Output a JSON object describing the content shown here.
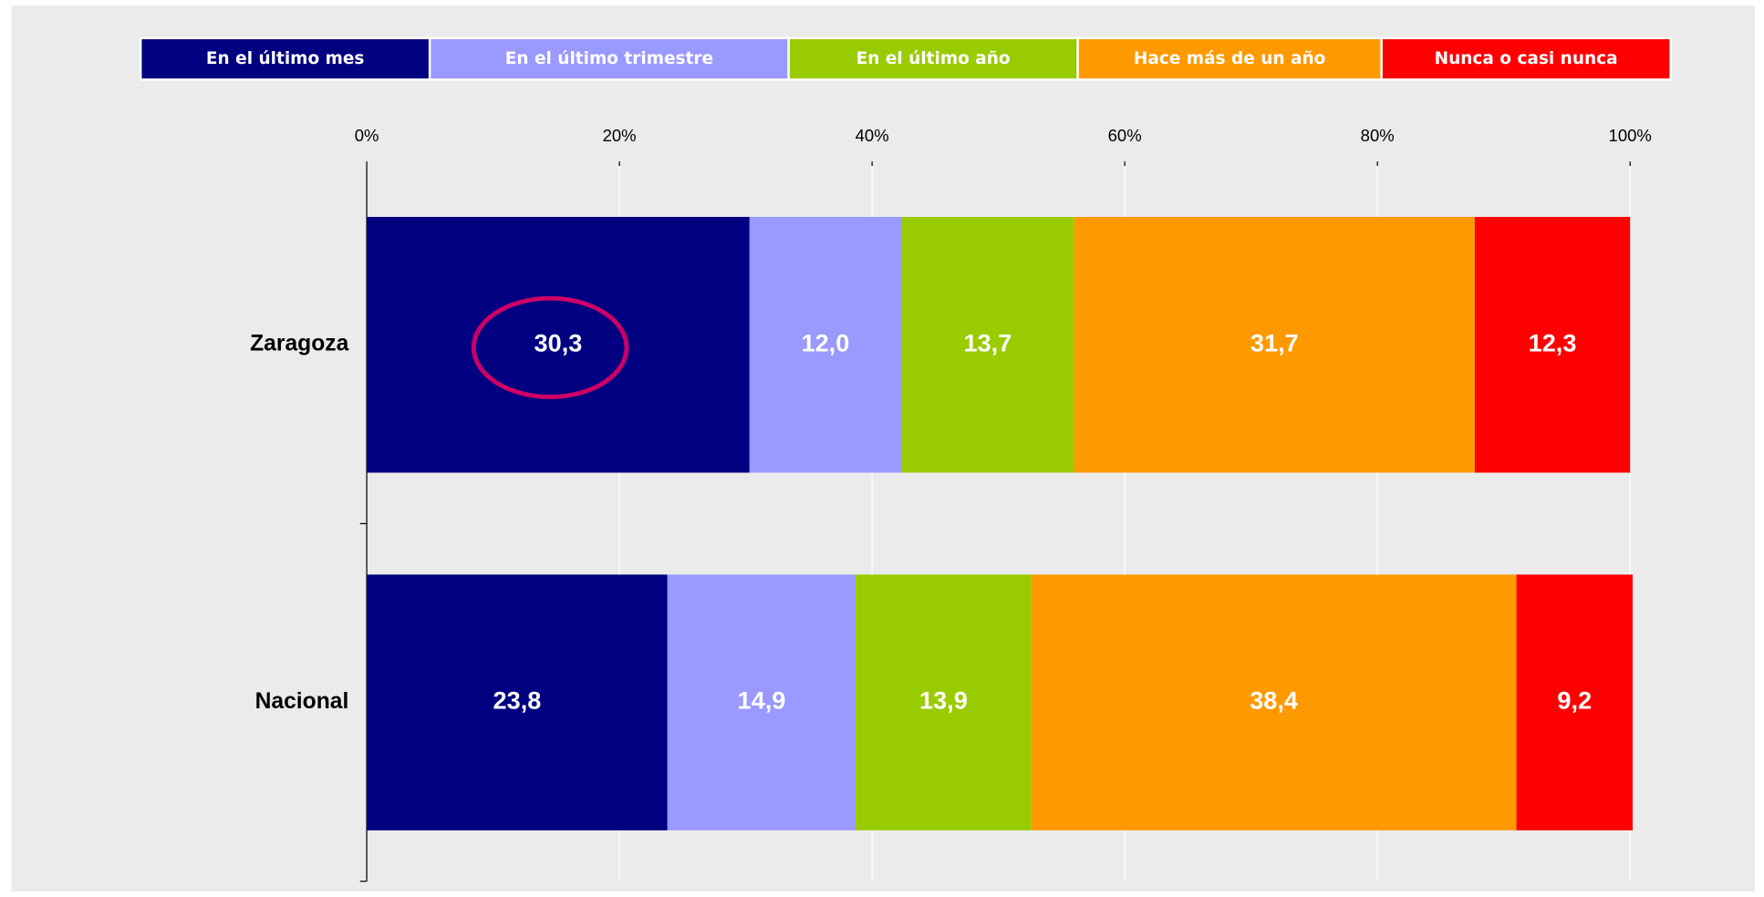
{
  "chart_data": {
    "type": "stacked_bar_horizontal",
    "categories": [
      "Zaragoza",
      "Nacional"
    ],
    "series": [
      {
        "name": "En el último mes",
        "color": "#000080",
        "values": [
          30.3,
          23.8
        ],
        "value_labels": [
          "30,3",
          "23,8"
        ]
      },
      {
        "name": "En el último trimestre",
        "color": "#9999ff",
        "values": [
          12.0,
          14.9
        ],
        "value_labels": [
          "12,0",
          "14,9"
        ]
      },
      {
        "name": "En el último año",
        "color": "#99cc00",
        "values": [
          13.7,
          13.9
        ],
        "value_labels": [
          "13,7",
          "13,9"
        ]
      },
      {
        "name": "Hace más de un año",
        "color": "#ff9900",
        "values": [
          31.7,
          38.4
        ],
        "value_labels": [
          "31,7",
          "38,4"
        ]
      },
      {
        "name": "Nunca o casi nunca",
        "color": "#ff0000",
        "values": [
          12.3,
          9.2
        ],
        "value_labels": [
          "12,3",
          "9,2"
        ]
      }
    ],
    "xlim": [
      0,
      100
    ],
    "xticks": [
      {
        "value": 0,
        "label": "0%"
      },
      {
        "value": 20,
        "label": "20%"
      },
      {
        "value": 40,
        "label": "40%"
      },
      {
        "value": 60,
        "label": "60%"
      },
      {
        "value": 80,
        "label": "80%"
      },
      {
        "value": 100,
        "label": "100%"
      }
    ],
    "grid": true,
    "legend": "top"
  }
}
